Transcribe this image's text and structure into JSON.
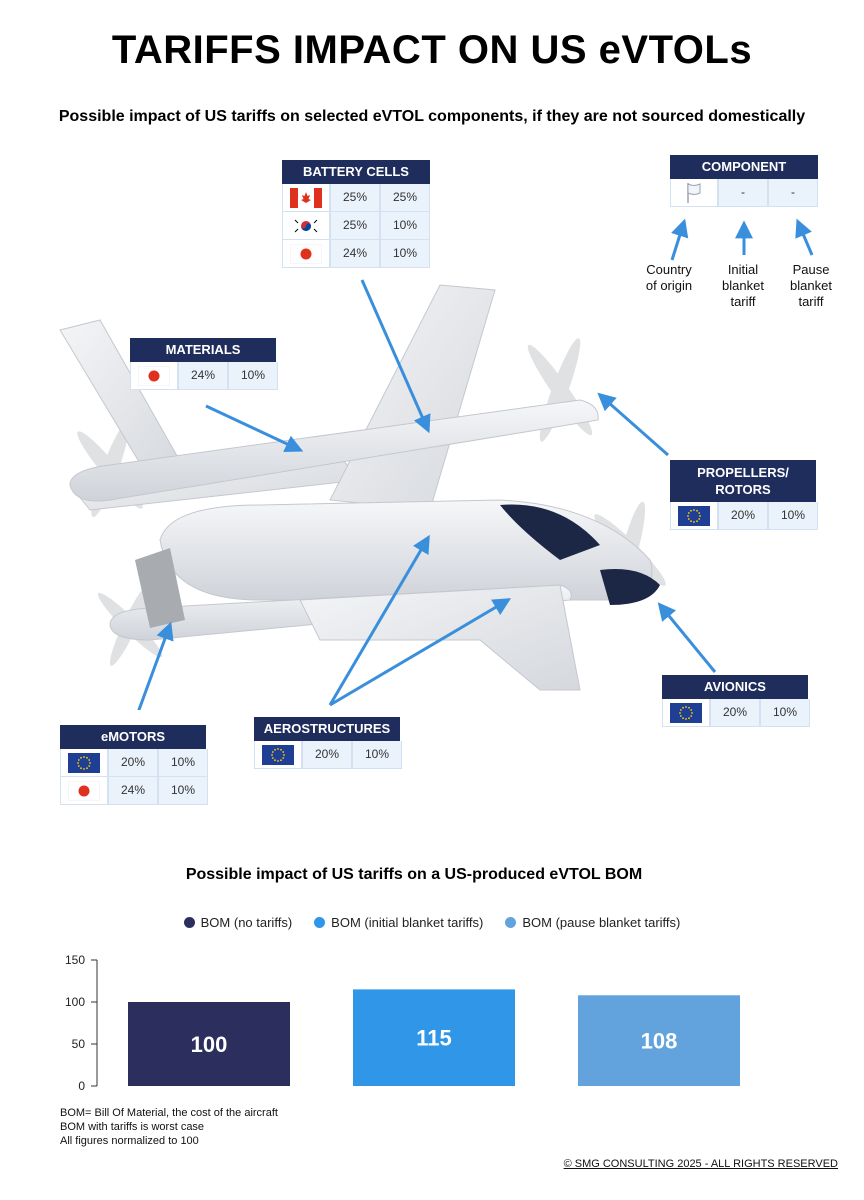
{
  "title": "TARIFFS IMPACT ON US eVTOLs",
  "subtitle": "Possible impact of US tariffs on selected eVTOL components, if they are not sourced domestically",
  "legend_box": {
    "header": "COMPONENT",
    "initial": "-",
    "pause": "-",
    "label_origin": "Country of origin",
    "label_initial": "Initial blanket tariff",
    "label_pause": "Pause blanket tariff"
  },
  "components": {
    "battery": {
      "header": "BATTERY CELLS",
      "rows": [
        {
          "country": "canada-flag",
          "initial": "25%",
          "pause": "25%"
        },
        {
          "country": "south-korea-flag",
          "initial": "25%",
          "pause": "10%"
        },
        {
          "country": "japan-flag",
          "initial": "24%",
          "pause": "10%"
        }
      ]
    },
    "materials": {
      "header": "MATERIALS",
      "rows": [
        {
          "country": "japan-flag",
          "initial": "24%",
          "pause": "10%"
        }
      ]
    },
    "propellers": {
      "header": "PROPELLERS/ ROTORS",
      "rows": [
        {
          "country": "eu-flag",
          "initial": "20%",
          "pause": "10%"
        }
      ]
    },
    "avionics": {
      "header": "AVIONICS",
      "rows": [
        {
          "country": "eu-flag",
          "initial": "20%",
          "pause": "10%"
        }
      ]
    },
    "aerostructures": {
      "header": "AEROSTRUCTURES",
      "rows": [
        {
          "country": "eu-flag",
          "initial": "20%",
          "pause": "10%"
        }
      ]
    },
    "emotors": {
      "header": "eMOTORS",
      "rows": [
        {
          "country": "eu-flag",
          "initial": "20%",
          "pause": "10%"
        },
        {
          "country": "japan-flag",
          "initial": "24%",
          "pause": "10%"
        }
      ]
    }
  },
  "chart_data": {
    "type": "bar",
    "title": "Possible impact of US tariffs on a US-produced eVTOL BOM",
    "categories": [
      "BOM (no tariffs)",
      "BOM (initial blanket tariffs)",
      "BOM (pause blanket tariffs)"
    ],
    "values": [
      100,
      115,
      108
    ],
    "colors": [
      "#2c2f5e",
      "#2f96e8",
      "#62a3de"
    ],
    "ylim": [
      0,
      150
    ],
    "yticks": [
      0,
      50,
      100,
      150
    ],
    "legend_position": "top",
    "grid": false
  },
  "footnotes": [
    "BOM= Bill Of Material, the cost of the aircraft",
    "BOM with tariffs is worst case",
    "All figures normalized to 100"
  ],
  "copyright": "© SMG CONSULTING 2025 - ALL RIGHTS RESERVED",
  "colors": {
    "header_bg": "#1f2d5c",
    "cell_bg": "#eaf2fb",
    "arrow": "#3a8fdc"
  }
}
